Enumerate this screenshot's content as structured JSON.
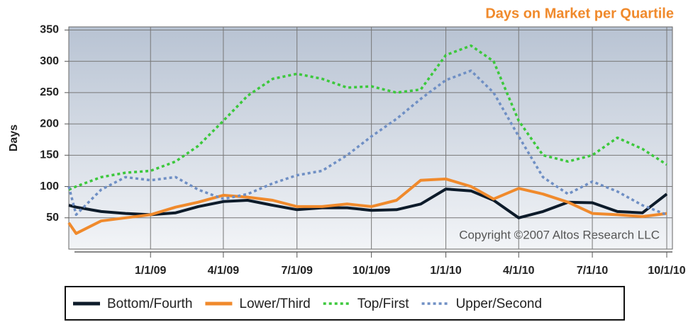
{
  "chart_data": {
    "type": "line",
    "title": "Days on Market per Quartile",
    "y_label": "Days",
    "annotation": "Copyright ©2007 Altos Research LLC",
    "x": [
      "2008-09-22",
      "2008-10-01",
      "2008-11-01",
      "2008-12-01",
      "2009-01-01",
      "2009-02-01",
      "2009-03-01",
      "2009-04-01",
      "2009-05-01",
      "2009-06-01",
      "2009-07-01",
      "2009-08-01",
      "2009-09-01",
      "2009-10-01",
      "2009-11-01",
      "2009-12-01",
      "2010-01-01",
      "2010-02-01",
      "2010-03-01",
      "2010-04-01",
      "2010-05-01",
      "2010-06-01",
      "2010-07-01",
      "2010-08-01",
      "2010-09-01",
      "2010-10-01"
    ],
    "series": [
      {
        "name": "Bottom/Fourth",
        "color": "#0d1b2a",
        "dash": "solid",
        "values": [
          70,
          67,
          60,
          57,
          55,
          58,
          68,
          76,
          78,
          70,
          63,
          66,
          66,
          62,
          63,
          72,
          96,
          93,
          78,
          50,
          60,
          75,
          74,
          60,
          58,
          88
        ]
      },
      {
        "name": "Lower/Third",
        "color": "#f08a2c",
        "dash": "solid",
        "values": [
          42,
          25,
          45,
          50,
          55,
          67,
          75,
          86,
          83,
          78,
          68,
          68,
          72,
          68,
          78,
          110,
          112,
          100,
          80,
          97,
          88,
          75,
          57,
          55,
          52,
          57
        ]
      },
      {
        "name": "Top/First",
        "color": "#3cc83c",
        "dash": "dotted",
        "values": [
          95,
          100,
          115,
          122,
          125,
          140,
          165,
          205,
          245,
          272,
          280,
          272,
          258,
          260,
          250,
          255,
          310,
          325,
          300,
          205,
          150,
          140,
          150,
          178,
          160,
          135
        ]
      },
      {
        "name": "Upper/Second",
        "color": "#6f8fc4",
        "dash": "dotted",
        "values": [
          100,
          55,
          95,
          115,
          110,
          115,
          95,
          80,
          88,
          105,
          118,
          125,
          150,
          180,
          208,
          240,
          270,
          285,
          250,
          180,
          115,
          88,
          108,
          92,
          70,
          55
        ]
      }
    ],
    "xlim": [
      "2008-09-22",
      "2010-10-08"
    ],
    "xticks": [
      {
        "value": "2009-01-01",
        "label": "1/1/09"
      },
      {
        "value": "2009-04-01",
        "label": "4/1/09"
      },
      {
        "value": "2009-07-01",
        "label": "7/1/09"
      },
      {
        "value": "2009-10-01",
        "label": "10/1/09"
      },
      {
        "value": "2010-01-01",
        "label": "1/1/10"
      },
      {
        "value": "2010-04-01",
        "label": "4/1/10"
      },
      {
        "value": "2010-07-01",
        "label": "7/1/10"
      },
      {
        "value": "2010-10-01",
        "label": "10/1/10"
      }
    ],
    "ylim": [
      0,
      355
    ],
    "yticks": [
      50,
      100,
      150,
      200,
      250,
      300,
      350
    ],
    "grid": true,
    "legend": "bottom"
  }
}
